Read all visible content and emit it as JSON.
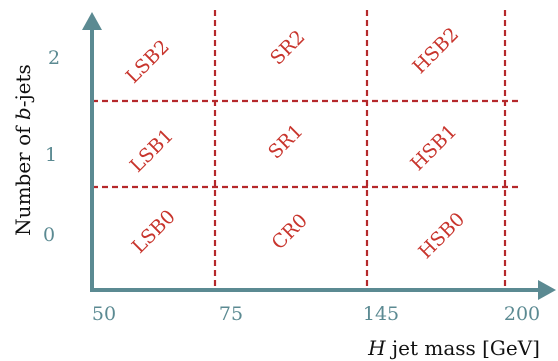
{
  "diagram": {
    "x_ticks": [
      "50",
      "75",
      "145",
      "200"
    ],
    "y_ticks": [
      "2",
      "1",
      "0"
    ],
    "x_axis_label_italic": "H",
    "x_axis_label_rest": " jet mass [GeV]",
    "y_axis_label_prefix": "Number of ",
    "y_axis_label_italic": "b",
    "y_axis_label_suffix": "-jets",
    "regions": [
      [
        "LSB2",
        "SR2",
        "HSB2"
      ],
      [
        "LSB1",
        "SR1",
        "HSB1"
      ],
      [
        "LSB0",
        "CR0",
        "HSB0"
      ]
    ],
    "colors": {
      "axis": "#5b8a92",
      "divider": "#b5282b",
      "region_text": "#c8342c",
      "axis_title": "#111111"
    }
  }
}
